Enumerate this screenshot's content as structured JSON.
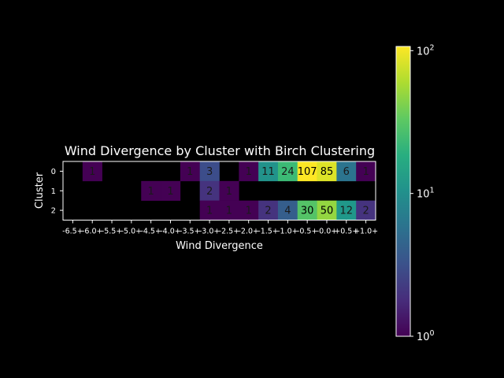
{
  "chart_data": {
    "type": "heatmap",
    "title": "Wind Divergence by Cluster with Birch Clustering",
    "xlabel": "Wind Divergence",
    "ylabel": "Cluster",
    "x_tick_labels": [
      "-6.5+",
      "-6.0+",
      "-5.5+",
      "-5.0+",
      "-4.5+",
      "-4.0+",
      "-3.5+",
      "-3.0+",
      "-2.5+",
      "-2.0+",
      "-1.5+",
      "-1.0+",
      "-0.5+",
      "-0.0+",
      "+0.5+",
      "+1.0+"
    ],
    "y_tick_labels": [
      "0",
      "1",
      "2"
    ],
    "values": [
      [
        null,
        1,
        null,
        null,
        null,
        null,
        1,
        3,
        null,
        1,
        11,
        24,
        107,
        85,
        6,
        1
      ],
      [
        null,
        null,
        null,
        null,
        1,
        1,
        null,
        2,
        1,
        null,
        null,
        null,
        null,
        null,
        null,
        null
      ],
      [
        null,
        null,
        null,
        null,
        null,
        null,
        null,
        1,
        1,
        1,
        2,
        4,
        30,
        50,
        12,
        2
      ]
    ],
    "colorbar": {
      "scale": "log",
      "colormap": "viridis",
      "range": [
        1,
        107
      ],
      "tick_labels": [
        {
          "value": 1,
          "base": "10",
          "exp": "0"
        },
        {
          "value": 10,
          "base": "10",
          "exp": "1"
        },
        {
          "value": 100,
          "base": "10",
          "exp": "2"
        }
      ]
    },
    "background": "#000000",
    "text_color": "#ffffff"
  }
}
